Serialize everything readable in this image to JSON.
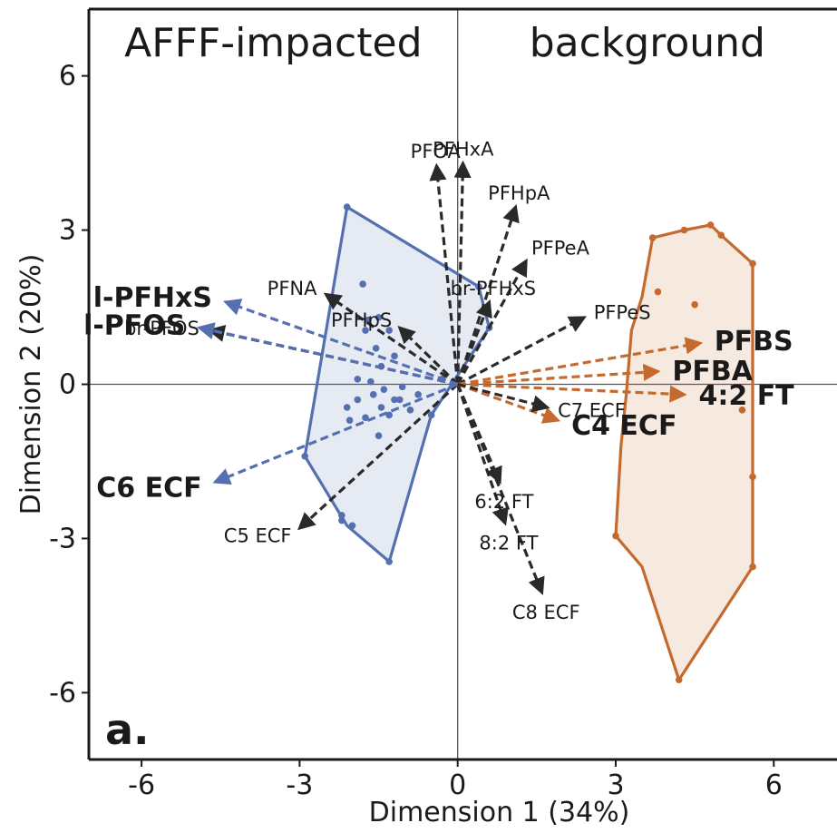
{
  "chart_data": {
    "type": "scatter",
    "subtype": "PCA biplot",
    "panel_label": "a.",
    "xlabel": "Dimension 1 (34%)",
    "ylabel": "Dimension 2 (20%)",
    "xlim": [
      -7.0,
      7.2
    ],
    "ylim": [
      -7.3,
      7.3
    ],
    "xticks": [
      {
        "v": -6,
        "label": "-6"
      },
      {
        "v": -3,
        "label": "-3"
      },
      {
        "v": 0,
        "label": "0"
      },
      {
        "v": 3,
        "label": "3"
      },
      {
        "v": 6,
        "label": "6"
      }
    ],
    "yticks": [
      {
        "v": 6,
        "label": "6"
      },
      {
        "v": 3,
        "label": "3"
      },
      {
        "v": 0,
        "label": "0"
      },
      {
        "v": -3,
        "label": "-3"
      },
      {
        "v": -6,
        "label": "-6"
      }
    ],
    "grid": false,
    "region_labels": [
      {
        "text": "AFFF-impacted",
        "side": "left"
      },
      {
        "text": "background",
        "side": "right"
      }
    ],
    "colors": {
      "afff": "#5470b0",
      "background": "#c46a2e",
      "neutral": "#2a2a2a"
    },
    "groups": [
      {
        "key": "afff",
        "name": "AFFF-impacted",
        "hull": [
          [
            -2.1,
            3.45
          ],
          [
            0.4,
            1.9
          ],
          [
            0.6,
            1.1
          ],
          [
            -0.5,
            -0.6
          ],
          [
            -1.3,
            -3.45
          ],
          [
            -2.1,
            -2.75
          ],
          [
            -2.9,
            -1.4
          ],
          [
            -2.1,
            3.45
          ]
        ],
        "points": [
          [
            -2.1,
            3.45
          ],
          [
            -1.8,
            1.95
          ],
          [
            -1.5,
            1.3
          ],
          [
            -1.3,
            1.05
          ],
          [
            -1.7,
            1.25
          ],
          [
            -1.75,
            1.05
          ],
          [
            -1.55,
            0.7
          ],
          [
            -1.2,
            0.55
          ],
          [
            -1.45,
            0.35
          ],
          [
            -1.9,
            0.1
          ],
          [
            -1.65,
            0.05
          ],
          [
            -1.4,
            -0.1
          ],
          [
            -1.6,
            -0.2
          ],
          [
            -1.2,
            -0.3
          ],
          [
            -1.9,
            -0.3
          ],
          [
            -1.45,
            -0.45
          ],
          [
            -1.75,
            -0.65
          ],
          [
            -2.1,
            -0.45
          ],
          [
            -2.05,
            -0.7
          ],
          [
            -1.3,
            -0.6
          ],
          [
            -1.1,
            -0.3
          ],
          [
            -0.9,
            -0.5
          ],
          [
            -0.75,
            -0.2
          ],
          [
            -1.05,
            -0.05
          ],
          [
            -0.5,
            -0.6
          ],
          [
            -1.5,
            -1.0
          ],
          [
            -2.2,
            -2.55
          ],
          [
            -2.0,
            -2.75
          ],
          [
            -2.2,
            -2.65
          ],
          [
            0.4,
            1.9
          ],
          [
            0.6,
            1.1
          ],
          [
            -0.3,
            0.1
          ],
          [
            -2.9,
            -1.4
          ],
          [
            -1.3,
            -3.45
          ]
        ]
      },
      {
        "key": "background",
        "name": "background",
        "hull": [
          [
            3.7,
            2.85
          ],
          [
            4.3,
            3.0
          ],
          [
            4.8,
            3.1
          ],
          [
            5.0,
            2.9
          ],
          [
            5.6,
            2.35
          ],
          [
            5.6,
            -1.8
          ],
          [
            5.6,
            -3.55
          ],
          [
            4.2,
            -5.75
          ],
          [
            3.5,
            -3.55
          ],
          [
            3.0,
            -2.95
          ],
          [
            3.1,
            -1.2
          ],
          [
            3.2,
            -0.2
          ],
          [
            3.3,
            1.05
          ],
          [
            3.5,
            1.7
          ],
          [
            3.7,
            2.85
          ]
        ],
        "points": [
          [
            3.7,
            2.85
          ],
          [
            4.3,
            3.0
          ],
          [
            4.8,
            3.1
          ],
          [
            5.0,
            2.9
          ],
          [
            5.6,
            2.35
          ],
          [
            3.8,
            1.8
          ],
          [
            4.5,
            1.55
          ],
          [
            5.4,
            -0.5
          ],
          [
            5.6,
            -1.8
          ],
          [
            5.6,
            -3.55
          ],
          [
            4.2,
            -5.75
          ],
          [
            3.0,
            -2.95
          ]
        ]
      }
    ],
    "loadings": [
      {
        "name": "PFOA",
        "x": -0.4,
        "y": 4.25,
        "color": "neutral",
        "emphasis": false
      },
      {
        "name": "PFHxA",
        "x": 0.1,
        "y": 4.3,
        "color": "neutral",
        "emphasis": false
      },
      {
        "name": "PFHpA",
        "x": 1.1,
        "y": 3.45,
        "color": "neutral",
        "emphasis": false
      },
      {
        "name": "PFPeA",
        "x": 1.3,
        "y": 2.4,
        "color": "neutral",
        "emphasis": false
      },
      {
        "name": "br-PFHxS",
        "x": 0.6,
        "y": 1.6,
        "color": "neutral",
        "emphasis": false
      },
      {
        "name": "PFPeS",
        "x": 2.4,
        "y": 1.3,
        "color": "neutral",
        "emphasis": false
      },
      {
        "name": "PFNA",
        "x": -2.5,
        "y": 1.75,
        "color": "neutral",
        "emphasis": false
      },
      {
        "name": "PFHpS",
        "x": -1.1,
        "y": 1.1,
        "color": "neutral",
        "emphasis": false
      },
      {
        "name": "br-PFOS",
        "x": -4.7,
        "y": 1.05,
        "color": "neutral",
        "emphasis": false
      },
      {
        "name": "C5 ECF",
        "x": -3.0,
        "y": -2.8,
        "color": "neutral",
        "emphasis": false
      },
      {
        "name": "6:2 FT",
        "x": 0.8,
        "y": -1.9,
        "color": "neutral",
        "emphasis": false
      },
      {
        "name": "8:2 FT",
        "x": 0.9,
        "y": -2.7,
        "color": "neutral",
        "emphasis": false
      },
      {
        "name": "C8 ECF",
        "x": 1.6,
        "y": -4.05,
        "color": "neutral",
        "emphasis": false
      },
      {
        "name": "l-PFHxS",
        "x": -4.4,
        "y": 1.6,
        "color": "afff",
        "emphasis": true
      },
      {
        "name": "l-PFOS",
        "x": -4.9,
        "y": 1.1,
        "color": "afff",
        "emphasis": true
      },
      {
        "name": "C6 ECF",
        "x": -4.6,
        "y": -1.9,
        "color": "afff",
        "emphasis": true
      },
      {
        "name": "PFBS",
        "x": 4.6,
        "y": 0.8,
        "color": "background",
        "emphasis": true
      },
      {
        "name": "PFBA",
        "x": 3.8,
        "y": 0.25,
        "color": "background",
        "emphasis": true
      },
      {
        "name": "4:2 FT",
        "x": 4.3,
        "y": -0.2,
        "color": "background",
        "emphasis": true
      },
      {
        "name": "C4 ECF",
        "x": 1.9,
        "y": -0.7,
        "color": "background",
        "emphasis": true
      },
      {
        "name": "C7 ECF",
        "x": 1.7,
        "y": -0.45,
        "color": "neutral",
        "emphasis": false
      }
    ]
  }
}
